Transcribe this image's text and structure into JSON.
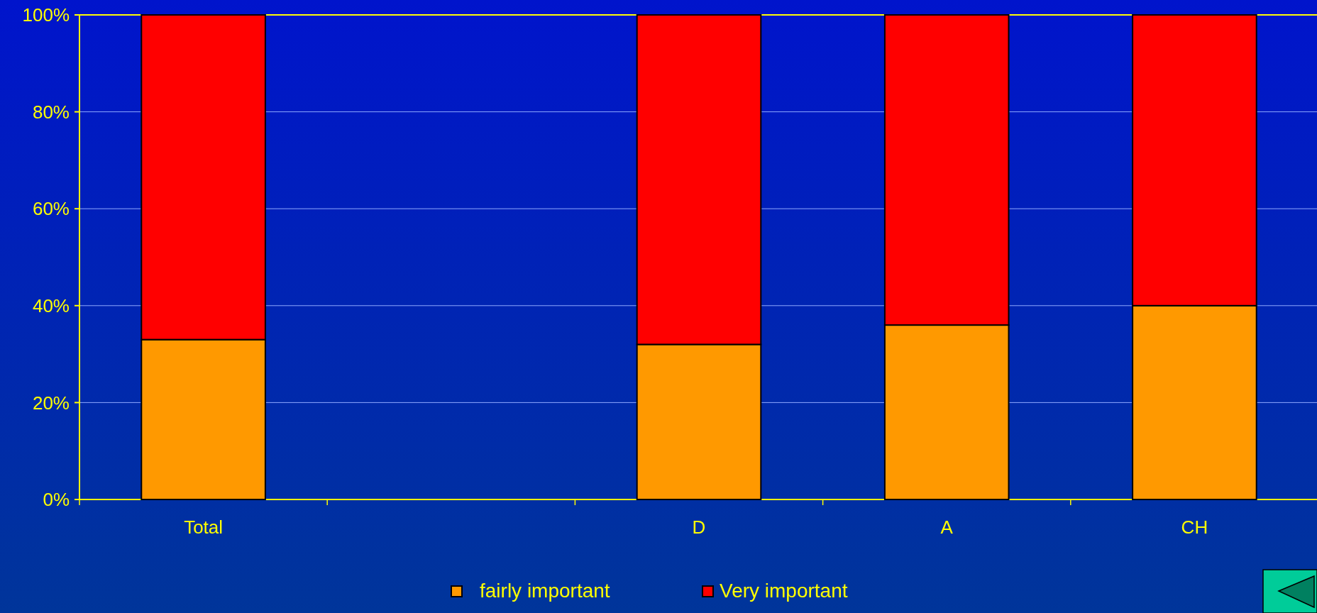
{
  "chart_data": {
    "type": "bar",
    "stacked": true,
    "categories": [
      "Total",
      null,
      "D",
      "A",
      "CH"
    ],
    "series": [
      {
        "name": "fairly important",
        "color": "#ff9900",
        "values": [
          33,
          null,
          32,
          36,
          40
        ]
      },
      {
        "name": "Very important",
        "color": "#ff0000",
        "values": [
          67,
          null,
          68,
          64,
          60
        ]
      }
    ],
    "ylim": [
      0,
      100
    ],
    "yticks": [
      {
        "value": 0,
        "label": "0%"
      },
      {
        "value": 20,
        "label": "20%"
      },
      {
        "value": 40,
        "label": "40%"
      },
      {
        "value": 60,
        "label": "60%"
      },
      {
        "value": 80,
        "label": "80%"
      },
      {
        "value": 100,
        "label": "100%"
      }
    ],
    "grid": "y",
    "legend": "bottom"
  }
}
